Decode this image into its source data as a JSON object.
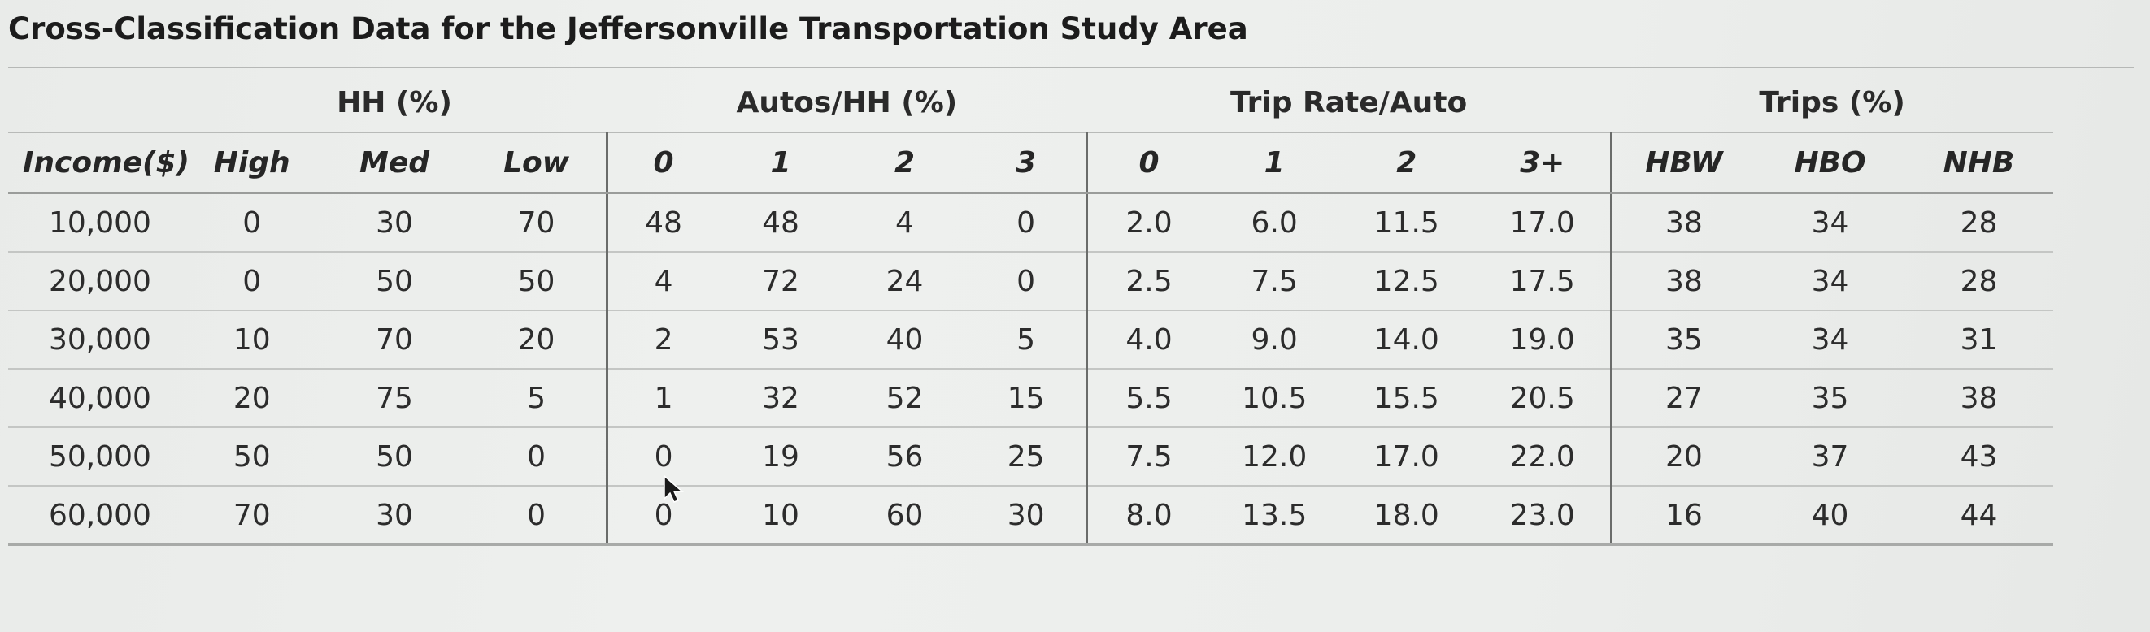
{
  "title": "Cross-Classification Data for the Jeffersonville Transportation Study Area",
  "groups": {
    "hh": "HH (%)",
    "autos": "Autos/HH (%)",
    "trip_rate": "Trip Rate/Auto",
    "trips": "Trips (%)"
  },
  "columns": [
    "Income($)",
    "High",
    "Med",
    "Low",
    "0",
    "1",
    "2",
    "3",
    "0",
    "1",
    "2",
    "3+",
    "HBW",
    "HBO",
    "NHB"
  ],
  "rows": [
    [
      "10,000",
      "0",
      "30",
      "70",
      "48",
      "48",
      "4",
      "0",
      "2.0",
      "6.0",
      "11.5",
      "17.0",
      "38",
      "34",
      "28"
    ],
    [
      "20,000",
      "0",
      "50",
      "50",
      "4",
      "72",
      "24",
      "0",
      "2.5",
      "7.5",
      "12.5",
      "17.5",
      "38",
      "34",
      "28"
    ],
    [
      "30,000",
      "10",
      "70",
      "20",
      "2",
      "53",
      "40",
      "5",
      "4.0",
      "9.0",
      "14.0",
      "19.0",
      "35",
      "34",
      "31"
    ],
    [
      "40,000",
      "20",
      "75",
      "5",
      "1",
      "32",
      "52",
      "15",
      "5.5",
      "10.5",
      "15.5",
      "20.5",
      "27",
      "35",
      "38"
    ],
    [
      "50,000",
      "50",
      "50",
      "0",
      "0",
      "19",
      "56",
      "25",
      "7.5",
      "12.0",
      "17.0",
      "22.0",
      "20",
      "37",
      "43"
    ],
    [
      "60,000",
      "70",
      "30",
      "0",
      "0",
      "10",
      "60",
      "30",
      "8.0",
      "13.5",
      "18.0",
      "23.0",
      "16",
      "40",
      "44"
    ]
  ]
}
